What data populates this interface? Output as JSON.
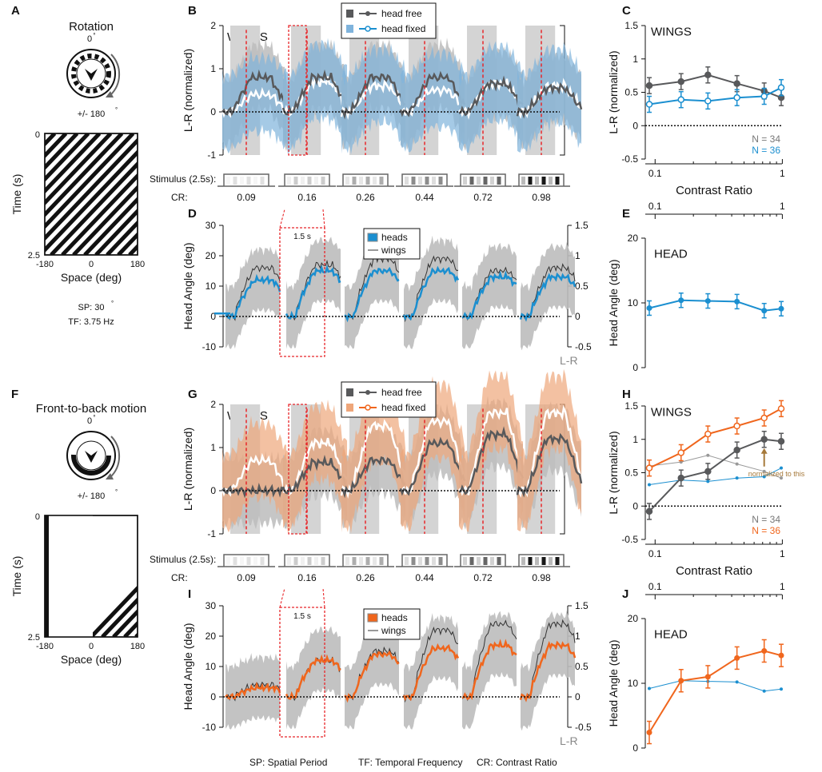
{
  "colors": {
    "gray": "#58595b",
    "blue": "#1b8fd0",
    "orange": "#f0661d",
    "lightgray": "#d4d4d4",
    "band": "#bcbcbc",
    "blueband": "#7fb3dc",
    "orangeband": "#eea67a",
    "red": "#e8262a",
    "tan": "#a6793a",
    "nblue": "#1b8fd0",
    "norange": "#f0661d"
  },
  "panel_labels": {
    "A": "A",
    "B": "B",
    "C": "C",
    "D": "D",
    "E": "E",
    "F": "F",
    "G": "G",
    "H": "H",
    "I": "I",
    "J": "J"
  },
  "panelA": {
    "title": "Rotation",
    "top": "0",
    "topdeg": "°",
    "bottom": "+/- 180",
    "ylabel": "Time (s)",
    "xlabel": "Space (deg)",
    "yticks": [
      "0",
      "2.5"
    ],
    "xticks": [
      "-180",
      "0",
      "180"
    ],
    "sp": "SP: 30",
    "spdeg": "°",
    "tf": "TF: 3.75 Hz"
  },
  "panelF": {
    "title": "Front-to-back motion",
    "top": "0",
    "topdeg": "°",
    "bottom": "+/- 180",
    "ylabel": "Time (s)",
    "xlabel": "Space (deg)",
    "yticks": [
      "0",
      "2.5"
    ],
    "xticks": [
      "-180",
      "0",
      "180"
    ]
  },
  "stim": {
    "label": "Stimulus (2.5s):",
    "cr_label": "CR:",
    "crs": [
      "0.09",
      "0.16",
      "0.26",
      "0.44",
      "0.72",
      "0.98"
    ]
  },
  "timebar": "1.5 s",
  "footer": {
    "sp": "SP: Spatial Period",
    "tf": "TF: Temporal Frequency",
    "cr": "CR: Contrast Ratio"
  },
  "chart_data": [
    {
      "id": "B",
      "type": "line",
      "title": "WINGS",
      "ylabel": "L-R (normalized)",
      "ylim": [
        -1,
        2
      ],
      "yticks": [
        "-1",
        "0",
        "1",
        "2"
      ],
      "legend": [
        "head free",
        "head fixed"
      ],
      "series": [
        {
          "name": "head free",
          "peaks": [
            0.8,
            0.8,
            0.8,
            0.8,
            0.65,
            0.55
          ]
        },
        {
          "name": "head fixed",
          "peaks": [
            0.4,
            0.7,
            0.6,
            0.5,
            0.65,
            0.6
          ]
        }
      ]
    },
    {
      "id": "C",
      "type": "line",
      "title": "WINGS",
      "ylabel": "L-R (normalized)",
      "xlabel": "Contrast Ratio",
      "ylim": [
        -0.5,
        1.5
      ],
      "yticks": [
        "-0.5",
        "0",
        "0.5",
        "1",
        "1.5"
      ],
      "xticks": [
        "0.1",
        "1"
      ],
      "x": [
        0.09,
        0.16,
        0.26,
        0.44,
        0.72,
        0.98
      ],
      "series": [
        {
          "name": "head free",
          "values": [
            0.6,
            0.66,
            0.76,
            0.63,
            0.52,
            0.42
          ]
        },
        {
          "name": "head fixed",
          "values": [
            0.32,
            0.39,
            0.37,
            0.42,
            0.44,
            0.57
          ]
        }
      ],
      "n_labels": [
        "N = 34",
        "N = 36"
      ]
    },
    {
      "id": "D",
      "type": "line",
      "ylabel": "Head Angle (deg)",
      "ylim": [
        -10,
        30
      ],
      "yticks": [
        "-10",
        "0",
        "10",
        "20",
        "30"
      ],
      "y2ticks": [
        "-0.5",
        "0",
        "0.5",
        "1",
        "1.5"
      ],
      "y2label": "L-R",
      "legend": [
        "heads",
        "wings"
      ],
      "series": [
        {
          "name": "heads",
          "peaks": [
            12,
            15,
            15,
            15,
            13,
            13
          ]
        },
        {
          "name": "wings",
          "peaks": [
            0.8,
            0.85,
            0.95,
            0.95,
            0.75,
            0.8
          ]
        }
      ]
    },
    {
      "id": "E",
      "type": "line",
      "title": "HEAD",
      "ylabel": "Head Angle (deg)",
      "ylim": [
        0,
        20
      ],
      "yticks": [
        "0",
        "10",
        "20"
      ],
      "xticks": [
        "0.1",
        "1"
      ],
      "x": [
        0.09,
        0.16,
        0.26,
        0.44,
        0.72,
        0.98
      ],
      "series": [
        {
          "name": "heads",
          "values": [
            9.2,
            10.4,
            10.3,
            10.2,
            8.8,
            9.1
          ]
        }
      ]
    },
    {
      "id": "G",
      "type": "line",
      "title": "WINGS",
      "ylabel": "L-R (normalized)",
      "ylim": [
        -1,
        2
      ],
      "yticks": [
        "-1",
        "0",
        "1",
        "2"
      ],
      "legend": [
        "head free",
        "head fixed"
      ],
      "series": [
        {
          "name": "head free",
          "peaks": [
            0,
            0.65,
            0.7,
            1.1,
            1.3,
            1.2
          ]
        },
        {
          "name": "head fixed",
          "peaks": [
            0.7,
            1.1,
            1.5,
            1.6,
            1.8,
            1.8
          ]
        }
      ]
    },
    {
      "id": "H",
      "type": "line",
      "title": "WINGS",
      "ylabel": "L-R (normalized)",
      "xlabel": "Contrast Ratio",
      "ylim": [
        -0.5,
        1.5
      ],
      "yticks": [
        "-0.5",
        "0",
        "0.5",
        "1",
        "1.5"
      ],
      "xticks": [
        "0.1",
        "1"
      ],
      "x": [
        0.09,
        0.16,
        0.26,
        0.44,
        0.72,
        0.98
      ],
      "series": [
        {
          "name": "head free",
          "values": [
            -0.08,
            0.42,
            0.52,
            0.84,
            1.0,
            0.97
          ]
        },
        {
          "name": "head fixed",
          "values": [
            0.57,
            0.8,
            1.08,
            1.2,
            1.32,
            1.46
          ]
        },
        {
          "name": "head free (rotation, normalized)",
          "values": [
            0.6,
            0.66,
            0.76,
            0.63,
            0.52,
            0.42
          ]
        },
        {
          "name": "head fixed (rotation, normalized)",
          "values": [
            0.32,
            0.39,
            0.37,
            0.42,
            0.44,
            0.57
          ]
        }
      ],
      "annotation": "normalized to this",
      "n_labels": [
        "N = 34",
        "N = 36"
      ]
    },
    {
      "id": "I",
      "type": "line",
      "ylabel": "Head Angle (deg)",
      "ylim": [
        -10,
        30
      ],
      "yticks": [
        "-10",
        "0",
        "10",
        "20",
        "30"
      ],
      "y2ticks": [
        "-0.5",
        "0",
        "0.5",
        "1",
        "1.5"
      ],
      "y2label": "L-R",
      "legend": [
        "heads",
        "wings"
      ],
      "series": [
        {
          "name": "heads",
          "peaks": [
            3,
            12,
            14,
            16,
            17,
            17
          ]
        },
        {
          "name": "wings",
          "peaks": [
            0.2,
            0.6,
            0.75,
            1.1,
            1.2,
            1.2
          ]
        }
      ]
    },
    {
      "id": "J",
      "type": "line",
      "title": "HEAD",
      "ylabel": "Head Angle (deg)",
      "ylim": [
        0,
        20
      ],
      "yticks": [
        "0",
        "10",
        "20"
      ],
      "xticks": [
        "0.1",
        "1"
      ],
      "x": [
        0.09,
        0.16,
        0.26,
        0.44,
        0.72,
        0.98
      ],
      "series": [
        {
          "name": "heads",
          "values": [
            2.4,
            10.4,
            11.0,
            13.9,
            15.0,
            14.3
          ]
        },
        {
          "name": "heads (rotation)",
          "values": [
            9.2,
            10.4,
            10.3,
            10.2,
            8.8,
            9.1
          ]
        }
      ]
    }
  ]
}
